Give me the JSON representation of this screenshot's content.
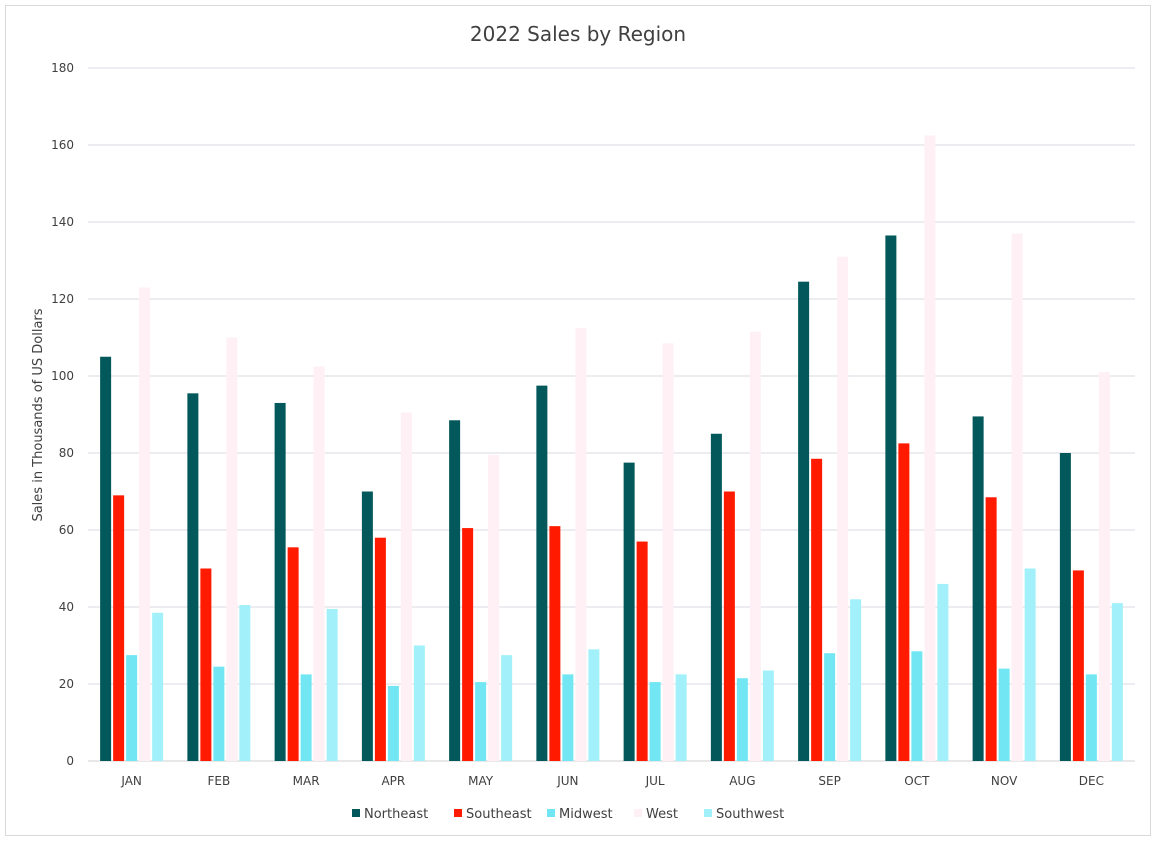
{
  "chart_data": {
    "type": "bar",
    "title": "2022 Sales by Region",
    "xlabel": "",
    "ylabel": "Sales in Thousands of US Dollars",
    "ylim": [
      0,
      180
    ],
    "yticks": [
      0,
      20,
      40,
      60,
      80,
      100,
      120,
      140,
      160,
      180
    ],
    "ytick_labels": [
      "0",
      "20",
      "40",
      "60",
      "80",
      "100",
      "120",
      "140",
      "160",
      "180"
    ],
    "grid": true,
    "legend_position": "bottom",
    "categories": [
      "JAN",
      "FEB",
      "MAR",
      "APR",
      "MAY",
      "JUN",
      "JUL",
      "AUG",
      "SEP",
      "OCT",
      "NOV",
      "DEC"
    ],
    "series": [
      {
        "name": "Northeast",
        "color": "#02585a",
        "values": [
          105,
          95.5,
          93,
          70,
          88.5,
          97.5,
          77.5,
          85,
          124.5,
          136.5,
          89.5,
          80
        ]
      },
      {
        "name": "Southeast",
        "color": "#ff1a00",
        "values": [
          69,
          50,
          55.5,
          58,
          60.5,
          61,
          57,
          70,
          78.5,
          82.5,
          68.5,
          49.5
        ]
      },
      {
        "name": "Midwest",
        "color": "#72e6f2",
        "values": [
          27.5,
          24.5,
          22.5,
          19.5,
          20.5,
          22.5,
          20.5,
          21.5,
          28,
          28.5,
          24,
          22.5
        ]
      },
      {
        "name": "West",
        "color": "#fff0f5",
        "values": [
          123,
          110,
          102.5,
          90.5,
          79.5,
          112.5,
          108.5,
          111.5,
          131,
          162.5,
          137,
          101
        ]
      },
      {
        "name": "Southwest",
        "color": "#a2f0fa",
        "values": [
          38.5,
          40.5,
          39.5,
          30,
          27.5,
          29,
          22.5,
          23.5,
          42,
          46,
          50,
          41
        ]
      }
    ]
  }
}
